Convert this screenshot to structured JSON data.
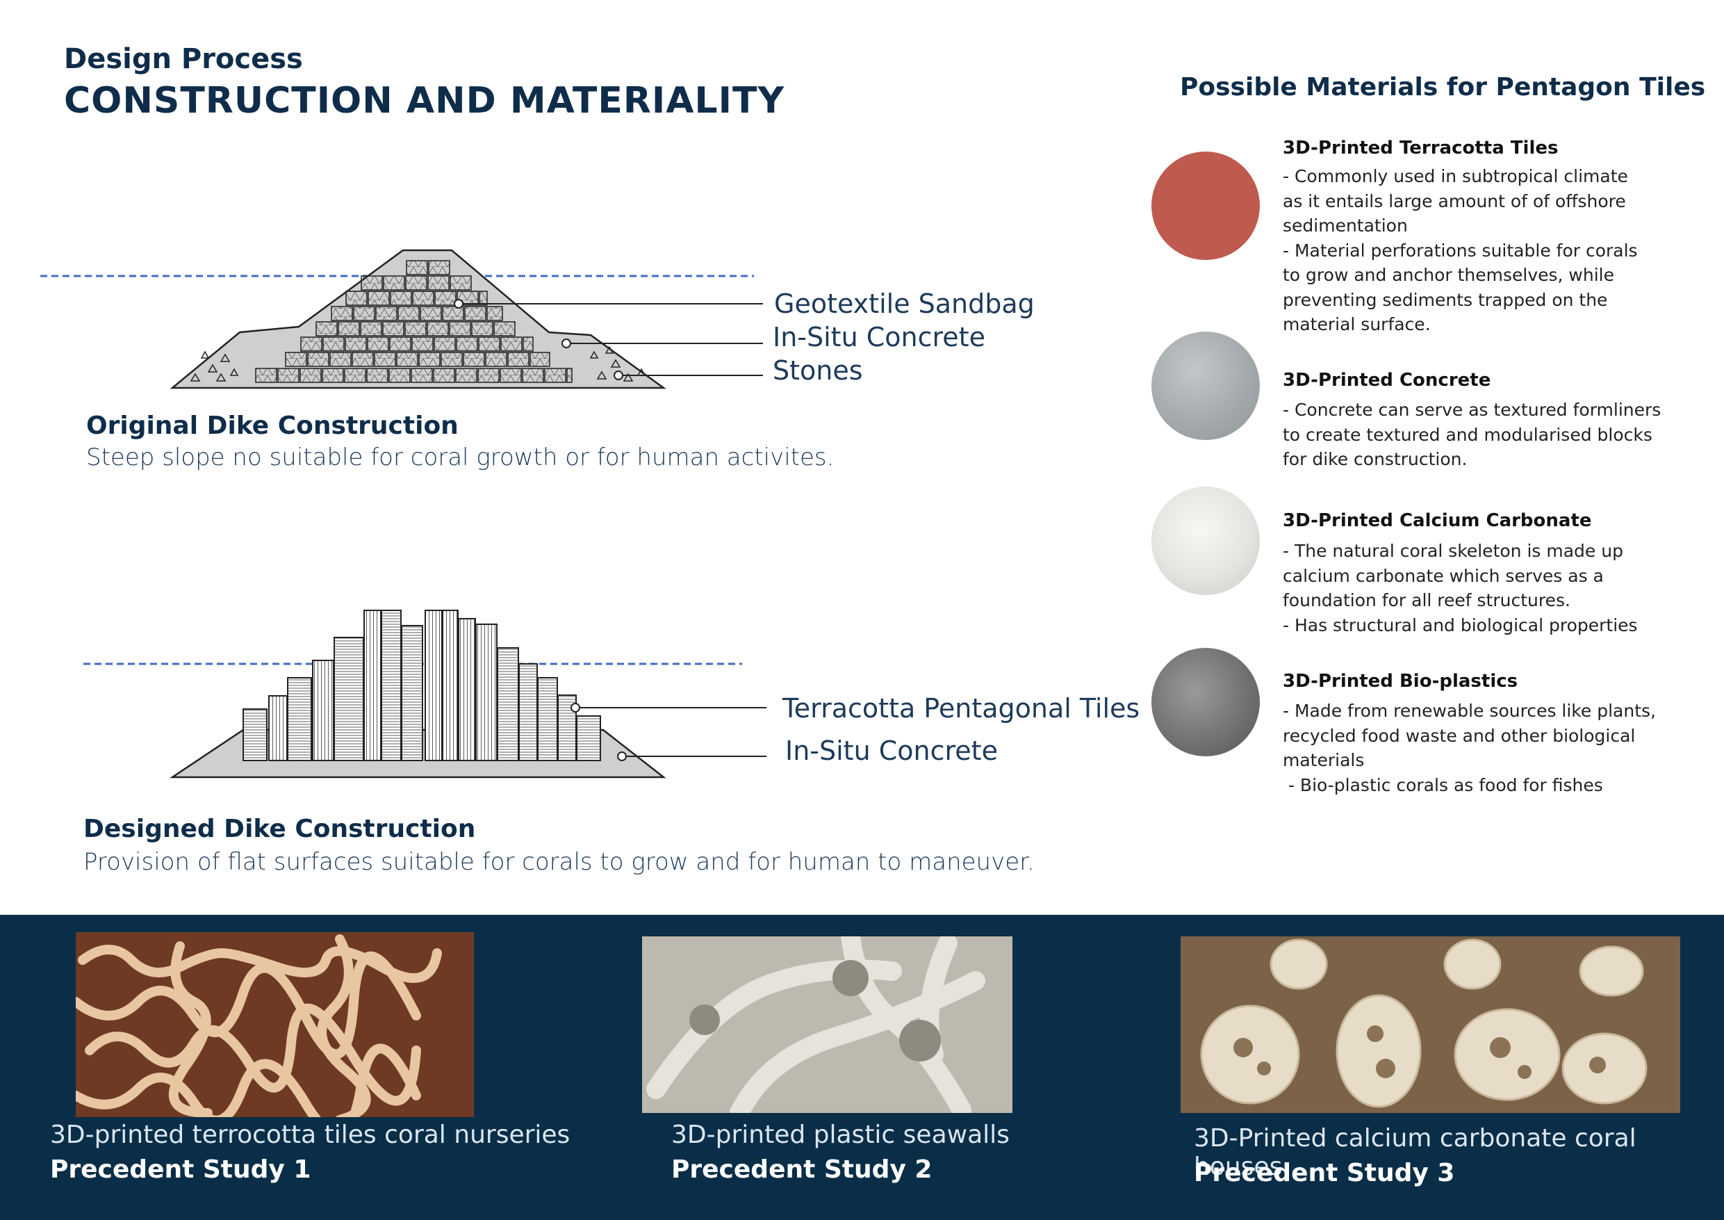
{
  "header": {
    "subtitle": "Design Process",
    "title": "CONSTRUCTION AND MATERIALITY"
  },
  "original": {
    "labels": [
      "Geotextile Sandbag",
      "In-Situ Concrete",
      "Stones"
    ],
    "title": "Original Dike Construction",
    "description": "Steep slope no suitable for coral growth or for human activites."
  },
  "designed": {
    "labels": [
      "Terracotta Pentagonal Tiles",
      "In-Situ Concrete"
    ],
    "title": "Designed Dike Construction",
    "description": "Provision of flat surfaces suitable for corals to grow and for human to maneuver."
  },
  "materials": {
    "heading": "Possible Materials for Pentagon Tiles",
    "items": [
      {
        "title": "3D-Printed Terracotta Tiles",
        "color": "#bf5a4e",
        "lines": [
          "- Commonly used in subtropical climate",
          "as it entails large amount of of offshore",
          "sedimentation",
          "- Material perforations suitable for corals",
          "to grow and anchor themselves, while",
          "preventing sediments trapped on the",
          "material surface."
        ]
      },
      {
        "title": "3D-Printed Concrete",
        "color": "#a9aeb1",
        "lines": [
          "- Concrete can serve as textured formliners",
          "to create textured and modularised blocks",
          "for dike construction."
        ]
      },
      {
        "title": "3D-Printed Calcium Carbonate",
        "color": "#e6e6e3",
        "lines": [
          "- The natural coral skeleton is made up",
          "calcium carbonate which serves as a",
          "foundation for all reef structures.",
          "- Has structural and biological properties"
        ]
      },
      {
        "title": "3D-Printed Bio-plastics",
        "color": "#7a7a7a",
        "lines": [
          "- Made from renewable sources like plants,",
          "recycled food waste and other biological",
          "materials",
          " - Bio-plastic corals as food for fishes"
        ]
      }
    ]
  },
  "precedents": [
    {
      "caption": "3D-printed terrocotta tiles coral nurseries",
      "label": "Precedent Study 1"
    },
    {
      "caption": "3D-printed plastic seawalls",
      "label": "Precedent Study 2"
    },
    {
      "caption": "3D-Printed calcium carbonate coral houses",
      "label": "Precedent Study 3"
    }
  ]
}
